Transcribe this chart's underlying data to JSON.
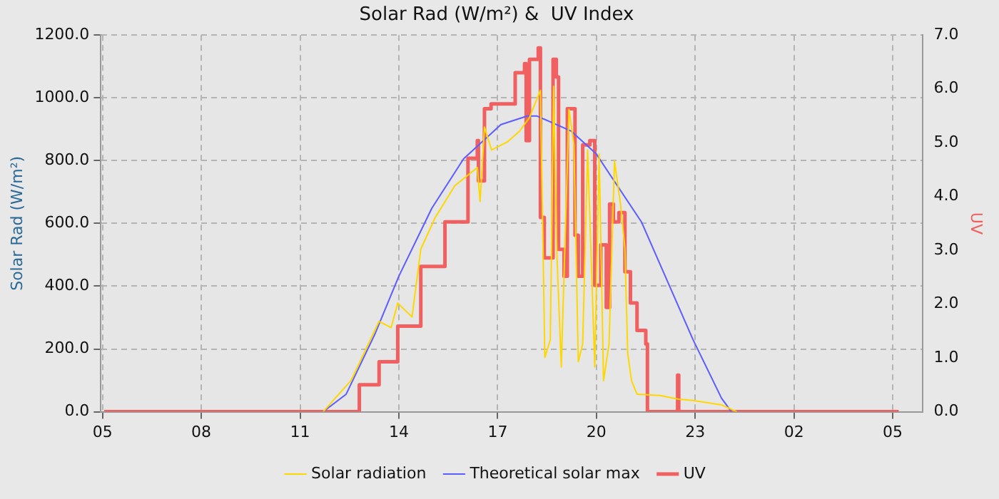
{
  "chart_data": {
    "type": "line",
    "title": "Solar Rad (W/m²) &  UV Index",
    "ylabel": "Solar Rad (W/m²)",
    "y2label": "UV",
    "xlim": [
      "--01-01T04:57",
      "--01-02T05:54"
    ],
    "xticks": [
      {
        "value": "--01-01T05:00",
        "label": "05"
      },
      {
        "value": "--01-01T08:00",
        "label": "08"
      },
      {
        "value": "--01-01T11:00",
        "label": "11"
      },
      {
        "value": "--01-01T14:00",
        "label": "14"
      },
      {
        "value": "--01-01T17:00",
        "label": "17"
      },
      {
        "value": "--01-01T20:00",
        "label": "20"
      },
      {
        "value": "--01-01T23:00",
        "label": "23"
      },
      {
        "value": "--01-02T02:00",
        "label": "02"
      },
      {
        "value": "--01-02T05:00",
        "label": "05"
      }
    ],
    "ylim": [
      0,
      1200
    ],
    "yticks": [
      {
        "value": 0,
        "label": "0.0"
      },
      {
        "value": 200,
        "label": "200.0"
      },
      {
        "value": 400,
        "label": "400.0"
      },
      {
        "value": 600,
        "label": "600.0"
      },
      {
        "value": 800,
        "label": "800.0"
      },
      {
        "value": 1000,
        "label": "1000.0"
      },
      {
        "value": 1200,
        "label": "1200.0"
      }
    ],
    "y2lim": [
      0,
      7
    ],
    "y2ticks": [
      {
        "value": 0,
        "label": "0.0"
      },
      {
        "value": 1,
        "label": "1.0"
      },
      {
        "value": 2,
        "label": "2.0"
      },
      {
        "value": 3,
        "label": "3.0"
      },
      {
        "value": 4,
        "label": "4.0"
      },
      {
        "value": 5,
        "label": "5.0"
      },
      {
        "value": 6,
        "label": "6.0"
      },
      {
        "value": 7,
        "label": "7.0"
      }
    ],
    "grid": true,
    "legend": "bottom",
    "marker": "none",
    "series": [
      {
        "name": "Solar radiation",
        "color": "#ffd700",
        "x": [
          "--01-01T11:42",
          "--01-01T12:33",
          "--01-01T13:24",
          "--01-01T13:46",
          "--01-01T13:58",
          "--01-01T14:24",
          "--01-01T14:40",
          "--01-01T15:06",
          "--01-01T15:42",
          "--01-01T16:23",
          "--01-01T16:28",
          "--01-01T16:36",
          "--01-01T16:49",
          "--01-01T17:18",
          "--01-01T17:40",
          "--01-01T17:58",
          "--01-01T18:18",
          "--01-01T18:26",
          "--01-01T18:36",
          "--01-01T18:42",
          "--01-01T18:48",
          "--01-01T18:56",
          "--01-01T19:10",
          "--01-01T19:19",
          "--01-01T19:27",
          "--01-01T19:35",
          "--01-01T19:44",
          "--01-01T19:57",
          "--01-01T20:05",
          "--01-01T20:13",
          "--01-01T20:23",
          "--01-01T20:33",
          "--01-01T20:44",
          "--01-01T20:52",
          "--01-01T20:57",
          "--01-01T21:04",
          "--01-01T21:14",
          "--01-01T21:56",
          "--01-01T22:30",
          "--01-01T22:56",
          "--01-01T23:48",
          "--01-02T00:16"
        ],
        "values": [
          0,
          100,
          288,
          268,
          346,
          302,
          518,
          618,
          720,
          778,
          670,
          907,
          834,
          860,
          894,
          937,
          1024,
          173,
          229,
          1037,
          500,
          143,
          963,
          851,
          160,
          216,
          834,
          143,
          821,
          99,
          216,
          799,
          661,
          518,
          186,
          99,
          56,
          52,
          40,
          36,
          22,
          0
        ]
      },
      {
        "name": "Theoretical solar max",
        "color": "#5c5cff",
        "x": [
          "--01-01T11:42",
          "--01-01T12:24",
          "--01-01T13:16",
          "--01-01T14:00",
          "--01-01T15:00",
          "--01-01T15:58",
          "--01-01T17:06",
          "--01-01T17:54",
          "--01-01T18:12",
          "--01-01T19:14",
          "--01-01T20:00",
          "--01-01T20:23",
          "--01-01T21:22",
          "--01-01T22:56",
          "--01-01T23:48",
          "--01-02T00:06"
        ],
        "values": [
          0,
          56,
          246,
          432,
          648,
          806,
          915,
          942,
          942,
          894,
          821,
          760,
          605,
          230,
          43,
          0
        ]
      },
      {
        "name": "UV",
        "color": "#f06060",
        "type": "step",
        "axis": "y2",
        "x": [
          "--01-01T05:03",
          "--01-01T12:46",
          "--01-01T12:48",
          "--01-01T13:24",
          "--01-01T13:58",
          "--01-01T14:40",
          "--01-01T15:24",
          "--01-01T16:06",
          "--01-01T16:23",
          "--01-01T16:25",
          "--01-01T16:36",
          "--01-01T16:48",
          "--01-01T17:32",
          "--01-01T17:49",
          "--01-01T17:52",
          "--01-01T17:58",
          "--01-01T18:14",
          "--01-01T18:18",
          "--01-01T18:25",
          "--01-01T18:41",
          "--01-01T18:47",
          "--01-01T18:51",
          "--01-01T19:01",
          "--01-01T19:07",
          "--01-01T19:14",
          "--01-01T19:21",
          "--01-01T19:27",
          "--01-01T19:35",
          "--01-01T19:48",
          "--01-01T19:57",
          "--01-01T20:08",
          "--01-01T20:18",
          "--01-01T20:24",
          "--01-01T20:31",
          "--01-01T20:41",
          "--01-01T20:52",
          "--01-01T21:02",
          "--01-01T21:14",
          "--01-01T21:30",
          "--01-01T21:33",
          "--01-01T22:27",
          "--01-01T22:28",
          "--01-01T22:30",
          "--01-02T05:11"
        ],
        "values": [
          0,
          0,
          0.5,
          0.93,
          1.59,
          2.7,
          3.53,
          4.71,
          5.04,
          4.29,
          5.63,
          5.72,
          6.3,
          6.47,
          5.04,
          6.55,
          6.76,
          3.61,
          2.86,
          6.55,
          6.22,
          3.02,
          2.52,
          5.63,
          5.63,
          3.28,
          2.52,
          4.96,
          5.04,
          2.35,
          3.1,
          1.94,
          3.86,
          3.53,
          3.7,
          2.6,
          2.02,
          1.51,
          1.26,
          0,
          0,
          0.68,
          0,
          0
        ]
      }
    ]
  }
}
